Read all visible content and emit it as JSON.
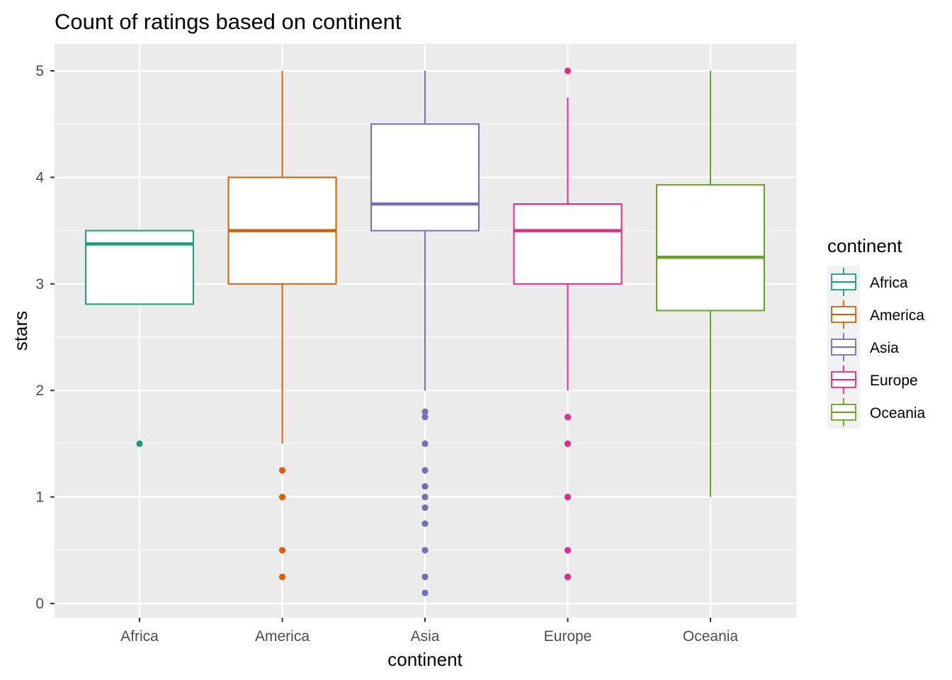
{
  "chart_data": {
    "type": "boxplot",
    "title": "Count of ratings based on continent",
    "xlabel": "continent",
    "ylabel": "stars",
    "ylim": [
      -0.15,
      5.25
    ],
    "yticks": [
      0,
      1,
      2,
      3,
      4,
      5
    ],
    "grid": true,
    "legend": {
      "title": "continent",
      "placement": "right"
    },
    "categories": [
      "Africa",
      "America",
      "Asia",
      "Europe",
      "Oceania"
    ],
    "series": [
      {
        "name": "Africa",
        "color": "#1B9E77",
        "whisker_low": 2.81,
        "q1": 2.81,
        "median": 3.375,
        "q3": 3.5,
        "whisker_high": 3.5,
        "outliers": [
          1.5
        ]
      },
      {
        "name": "America",
        "color": "#D95F02",
        "whisker_low": 1.5,
        "q1": 3.0,
        "median": 3.5,
        "q3": 4.0,
        "whisker_high": 5.0,
        "outliers": [
          1.25,
          1.0,
          0.5,
          0.25
        ]
      },
      {
        "name": "Asia",
        "color": "#7570B3",
        "whisker_low": 2.0,
        "q1": 3.5,
        "median": 3.75,
        "q3": 4.5,
        "whisker_high": 5.0,
        "outliers": [
          1.8,
          1.75,
          1.5,
          1.25,
          1.1,
          1.0,
          0.9,
          0.75,
          0.5,
          0.25,
          0.1
        ]
      },
      {
        "name": "Europe",
        "color": "#E7298A",
        "whisker_low": 2.0,
        "q1": 3.0,
        "median": 3.5,
        "q3": 3.75,
        "whisker_high": 4.75,
        "outliers": [
          5.0,
          1.75,
          1.5,
          1.0,
          0.5,
          0.25
        ]
      },
      {
        "name": "Oceania",
        "color": "#66A61E",
        "whisker_low": 1.0,
        "q1": 2.75,
        "median": 3.25,
        "q3": 3.93,
        "whisker_high": 5.0,
        "outliers": []
      }
    ]
  }
}
